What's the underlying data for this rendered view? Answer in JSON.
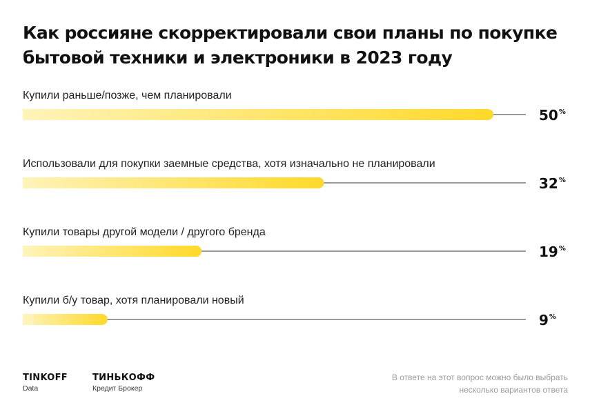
{
  "title": "Как россияне скорректировали свои планы по покупке бытовой техники и электроники в 2023 году",
  "footnote": "В ответе на этот вопрос можно было выбрать несколько вариантов ответа",
  "logos": {
    "tinkoff_data": {
      "name": "TINKOFF",
      "sub": "Data"
    },
    "tinkoff_broker": {
      "name": "ТИНЬКОФФ",
      "sub": "Кредит Брокер"
    }
  },
  "colors": {
    "bar_start": "#FFF3B8",
    "bar_end": "#FFD92A",
    "line": "#333333"
  },
  "chart_data": {
    "type": "bar",
    "orientation": "horizontal",
    "categories": [
      "Купили раньше/позже, чем планировали",
      "Использовали для покупки заемные средства, хотя изначально не планировали",
      "Купили товары другой модели / другого бренда",
      "Купили б/у товар, хотя планировали новый"
    ],
    "values": [
      50,
      32,
      19,
      9
    ],
    "value_labels": [
      "50",
      "32",
      "19",
      "9"
    ],
    "unit": "%",
    "xlim": [
      0,
      50
    ],
    "grid": false
  }
}
